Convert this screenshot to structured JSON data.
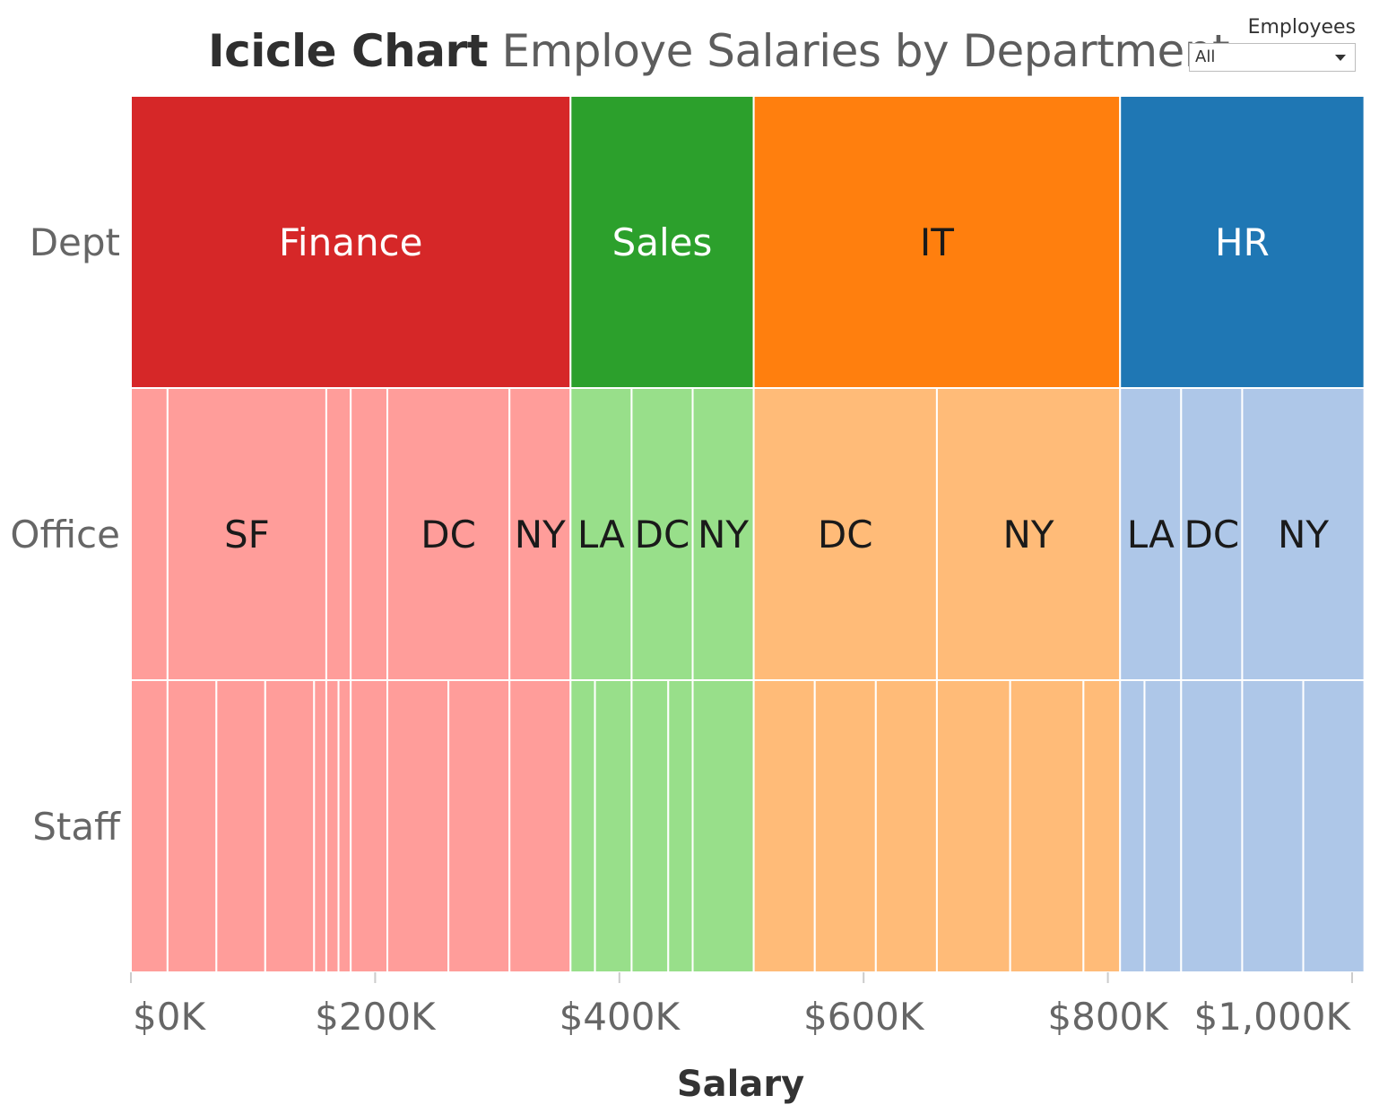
{
  "header": {
    "title_bold": "Icicle Chart",
    "title_rest": "Employe Salaries by Department"
  },
  "filter": {
    "label": "Employees",
    "value": "All"
  },
  "chart_data": {
    "type": "icicle",
    "xlabel": "Salary",
    "xlim": [
      0,
      1000000
    ],
    "x_ticks": [
      {
        "value": 0,
        "label": "$0K"
      },
      {
        "value": 200000,
        "label": "$200K"
      },
      {
        "value": 400000,
        "label": "$400K"
      },
      {
        "value": 600000,
        "label": "$600K"
      },
      {
        "value": 800000,
        "label": "$800K"
      },
      {
        "value": 1000000,
        "label": "$1,000K"
      }
    ],
    "levels": [
      "Dept",
      "Office",
      "Staff"
    ],
    "departments": [
      {
        "name": "Finance",
        "color": "#d62728",
        "light": "#ff9d9a",
        "text_color": "#ffffff",
        "offices": [
          {
            "name": "",
            "staff": [
              30000
            ]
          },
          {
            "name": "SF",
            "staff": [
              40000,
              40000,
              40000,
              10000
            ]
          },
          {
            "name": "",
            "staff": [
              10000,
              10000
            ]
          },
          {
            "name": "",
            "staff": [
              30000
            ]
          },
          {
            "name": "DC",
            "staff": [
              50000,
              50000
            ]
          },
          {
            "name": "NY",
            "staff": [
              50000
            ]
          }
        ]
      },
      {
        "name": "Sales",
        "color": "#2ca02c",
        "light": "#98df8a",
        "text_color": "#ffffff",
        "offices": [
          {
            "name": "LA",
            "staff": [
              20000,
              30000
            ]
          },
          {
            "name": "DC",
            "staff": [
              30000,
              20000
            ]
          },
          {
            "name": "NY",
            "staff": [
              50000
            ]
          }
        ]
      },
      {
        "name": "IT",
        "color": "#ff7f0e",
        "light": "#ffbb78",
        "text_color": "#1a1a1a",
        "offices": [
          {
            "name": "DC",
            "staff": [
              50000,
              50000,
              50000
            ]
          },
          {
            "name": "NY",
            "staff": [
              60000,
              60000,
              30000
            ]
          }
        ]
      },
      {
        "name": "HR",
        "color": "#1f77b4",
        "light": "#aec7e8",
        "text_color": "#ffffff",
        "offices": [
          {
            "name": "LA",
            "staff": [
              20000,
              30000
            ]
          },
          {
            "name": "DC",
            "staff": [
              50000
            ]
          },
          {
            "name": "NY",
            "staff": [
              50000,
              50000
            ]
          }
        ]
      }
    ]
  }
}
